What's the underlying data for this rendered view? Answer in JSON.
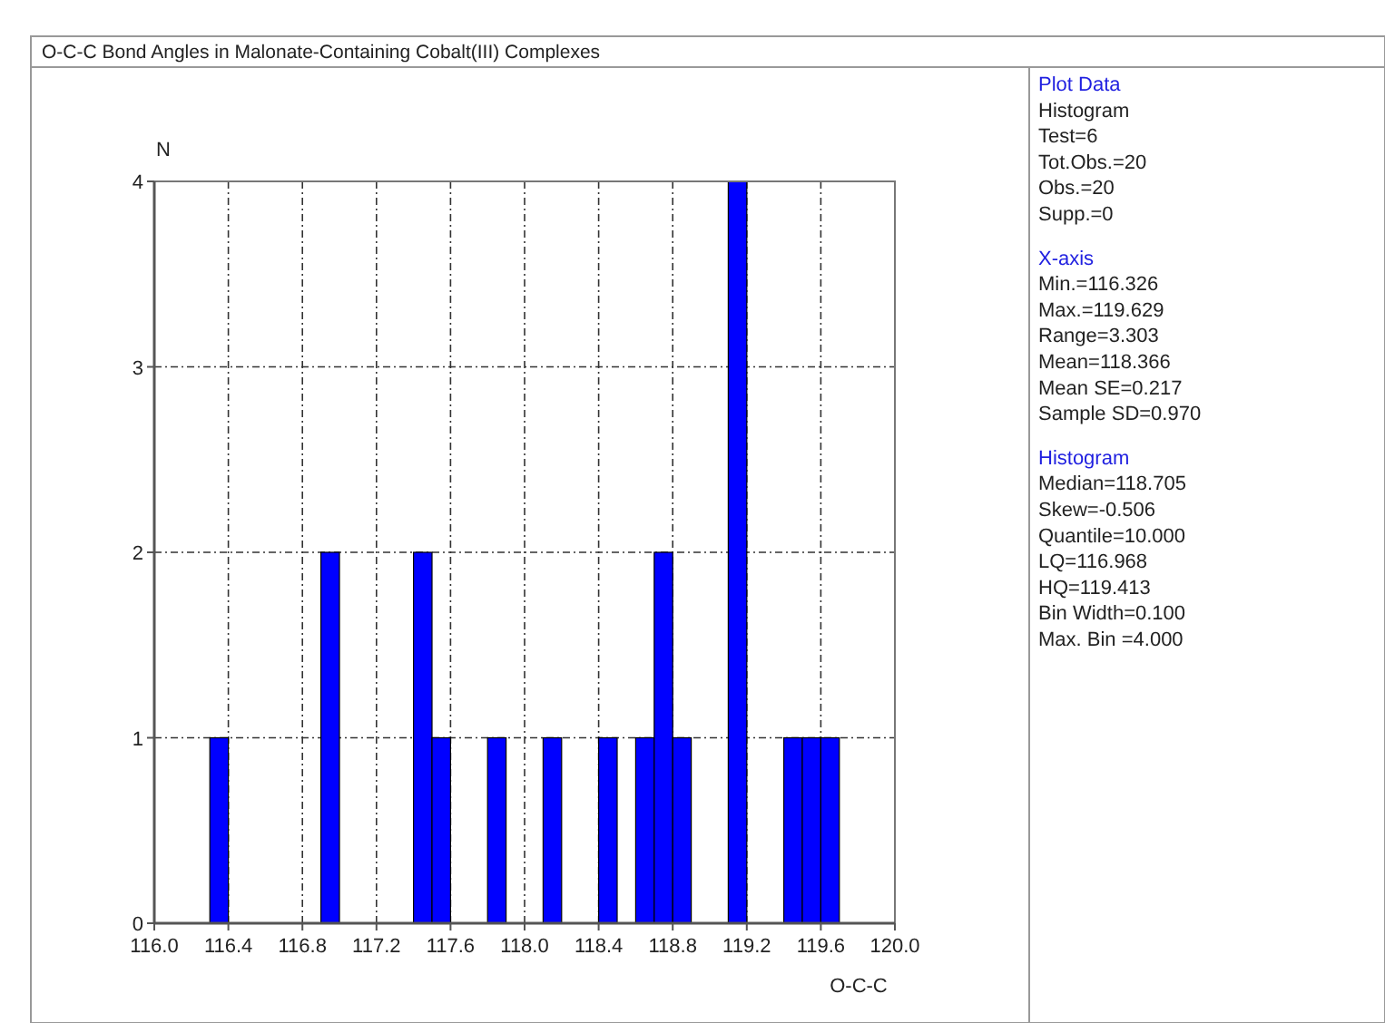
{
  "chart_data": {
    "type": "histogram",
    "title": "O-C-C Bond Angles in Malonate-Containing Cobalt(III) Complexes",
    "xlabel": "O-C-C",
    "ylabel": "N",
    "bins": [
      116.0,
      116.1,
      116.2,
      116.3,
      116.4,
      116.5,
      116.6,
      116.7,
      116.8,
      116.9,
      117.0,
      117.1,
      117.2,
      117.3,
      117.4,
      117.5,
      117.6,
      117.7,
      117.8,
      117.9,
      118.0,
      118.1,
      118.2,
      118.3,
      118.4,
      118.5,
      118.6,
      118.7,
      118.8,
      118.9,
      119.0,
      119.1,
      119.2,
      119.3,
      119.4,
      119.5,
      119.6,
      119.7,
      119.8,
      119.9,
      120.0
    ],
    "values": [
      0,
      0,
      0,
      1,
      0,
      0,
      0,
      0,
      0,
      2,
      0,
      0,
      0,
      0,
      2,
      1,
      0,
      0,
      1,
      0,
      0,
      1,
      0,
      0,
      1,
      0,
      1,
      2,
      1,
      0,
      0,
      4,
      0,
      0,
      1,
      1,
      1,
      0,
      0,
      0
    ],
    "color": "#0000ff",
    "xlim": [
      116.0,
      120.0
    ],
    "xticks": [
      {
        "value": 116.0,
        "label": "116.0"
      },
      {
        "value": 116.4,
        "label": "116.4"
      },
      {
        "value": 116.8,
        "label": "116.8"
      },
      {
        "value": 117.2,
        "label": "117.2"
      },
      {
        "value": 117.6,
        "label": "117.6"
      },
      {
        "value": 118.0,
        "label": "118.0"
      },
      {
        "value": 118.4,
        "label": "118.4"
      },
      {
        "value": 118.8,
        "label": "118.8"
      },
      {
        "value": 119.2,
        "label": "119.2"
      },
      {
        "value": 119.6,
        "label": "119.6"
      },
      {
        "value": 120.0,
        "label": "120.0"
      }
    ],
    "ylim": [
      0,
      4
    ],
    "yticks": [
      0,
      1,
      2,
      3,
      4
    ],
    "grid": true,
    "annotations": [
      "Plot Data",
      "Histogram",
      "Test=6",
      "Tot.Obs.=20",
      "Obs.=20",
      "Supp.=0",
      "X-axis",
      "Min.=116.326",
      "Max.=119.629",
      "Range=3.303",
      "Mean=118.366",
      "Mean SE=0.217",
      "Sample SD=0.970",
      "Histogram",
      "Median=118.705",
      "Skew=-0.506",
      "Quantile=10.000",
      "LQ=116.968",
      "HQ=119.413",
      "Bin Width=0.100",
      "Max. Bin =4.000"
    ]
  }
}
